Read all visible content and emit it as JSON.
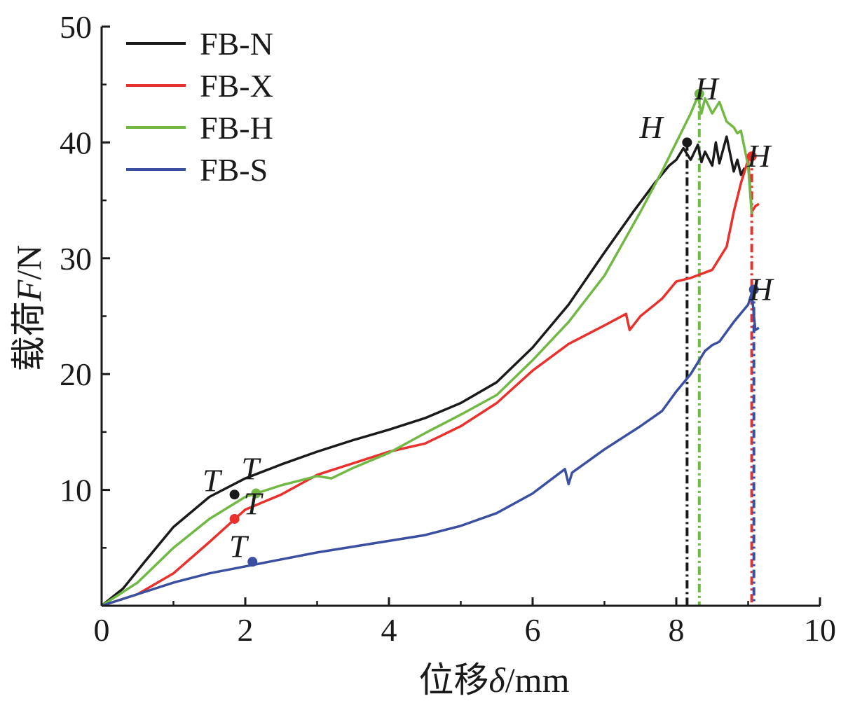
{
  "chart_data": {
    "type": "line",
    "xlabel_prefix": "位移",
    "xlabel_symbol": "δ",
    "xlabel_unit": "/mm",
    "ylabel_prefix": "载荷",
    "ylabel_symbol": "F",
    "ylabel_unit": "/N",
    "xlim": [
      0,
      10
    ],
    "ylim": [
      0,
      50
    ],
    "x_ticks": [
      0,
      2,
      4,
      6,
      8,
      10
    ],
    "y_ticks": [
      10,
      20,
      30,
      40,
      50
    ],
    "x_tick_labels": [
      "0",
      "2",
      "4",
      "6",
      "8",
      "10"
    ],
    "y_tick_labels": [
      "10",
      "20",
      "30",
      "40",
      "50"
    ],
    "grid": false,
    "legend_position": "top-left",
    "series": [
      {
        "name": "FB-N",
        "color": "#1a1a1a",
        "x": [
          0,
          0.3,
          0.6,
          1.0,
          1.5,
          2.0,
          2.5,
          3.0,
          3.5,
          4.0,
          4.5,
          5.0,
          5.5,
          6.0,
          6.5,
          7.0,
          7.4,
          7.7,
          7.9,
          8.0,
          8.1,
          8.2,
          8.3,
          8.35,
          8.4,
          8.5,
          8.55,
          8.6,
          8.7,
          8.8,
          8.85,
          8.9,
          8.95
        ],
        "y": [
          0,
          1.5,
          3.8,
          6.8,
          9.4,
          11.0,
          12.2,
          13.3,
          14.3,
          15.2,
          16.2,
          17.5,
          19.3,
          22.3,
          26.0,
          30.5,
          34.0,
          36.5,
          38.0,
          38.5,
          39.5,
          38.5,
          39.8,
          38.3,
          39.2,
          38.0,
          40.0,
          38.2,
          40.5,
          37.5,
          38.5,
          37.2,
          37.8
        ]
      },
      {
        "name": "FB-X",
        "color": "#e8302c",
        "x": [
          0,
          0.5,
          1.0,
          1.5,
          2.0,
          2.5,
          3.0,
          3.5,
          4.0,
          4.5,
          5.0,
          5.5,
          6.0,
          6.5,
          7.0,
          7.3,
          7.35,
          7.5,
          7.8,
          8.0,
          8.2,
          8.5,
          8.7,
          8.8,
          8.9,
          9.0,
          9.05,
          9.1,
          9.15
        ],
        "y": [
          0,
          1.0,
          2.8,
          5.5,
          8.3,
          9.6,
          11.3,
          12.3,
          13.3,
          14.0,
          15.5,
          17.5,
          20.3,
          22.6,
          24.2,
          25.2,
          23.8,
          25.0,
          26.5,
          28.0,
          28.3,
          29.0,
          31.0,
          34.0,
          36.5,
          38.5,
          34.0,
          34.5,
          34.7
        ]
      },
      {
        "name": "FB-H",
        "color": "#72b845",
        "x": [
          0,
          0.5,
          1.0,
          1.5,
          2.0,
          2.5,
          3.0,
          3.2,
          3.5,
          4.0,
          4.5,
          5.0,
          5.5,
          6.0,
          6.5,
          7.0,
          7.5,
          7.8,
          8.0,
          8.2,
          8.3,
          8.35,
          8.4,
          8.5,
          8.6,
          8.7,
          8.8,
          8.85,
          8.9,
          9.0,
          9.05
        ],
        "y": [
          0,
          2.0,
          5.0,
          7.5,
          9.4,
          10.4,
          11.2,
          11.0,
          11.9,
          13.2,
          14.9,
          16.5,
          18.2,
          21.2,
          24.5,
          28.5,
          34.0,
          37.5,
          40.0,
          42.5,
          44.0,
          42.5,
          43.8,
          42.5,
          43.5,
          41.8,
          41.3,
          40.8,
          41.0,
          38.0,
          33.8
        ]
      },
      {
        "name": "FB-S",
        "color": "#3b4fa1",
        "x": [
          0,
          0.5,
          1.0,
          1.5,
          2.0,
          2.5,
          3.0,
          3.5,
          4.0,
          4.5,
          5.0,
          5.5,
          6.0,
          6.45,
          6.5,
          6.55,
          7.0,
          7.5,
          7.8,
          8.0,
          8.2,
          8.4,
          8.5,
          8.6,
          8.8,
          9.0,
          9.05,
          9.1,
          9.15
        ],
        "y": [
          0,
          1.0,
          2.0,
          2.8,
          3.4,
          4.0,
          4.6,
          5.1,
          5.6,
          6.1,
          6.9,
          8.0,
          9.7,
          11.8,
          10.5,
          11.5,
          13.5,
          15.5,
          16.8,
          18.5,
          20.0,
          22.0,
          22.5,
          22.8,
          24.5,
          26.0,
          27.0,
          23.8,
          24.0
        ]
      }
    ],
    "markers": [
      {
        "series": "FB-N",
        "label": "T",
        "x": 1.85,
        "y": 9.6,
        "label_dx": -0.32,
        "label_dy": 0.3
      },
      {
        "series": "FB-H",
        "label": "T",
        "x": 2.15,
        "y": 9.7,
        "label_dx": -0.08,
        "label_dy": 1.2
      },
      {
        "series": "FB-X",
        "label": "T",
        "x": 1.85,
        "y": 7.5,
        "label_dx": 0.25,
        "label_dy": 0.4
      },
      {
        "series": "FB-S",
        "label": "T",
        "x": 2.1,
        "y": 3.8,
        "label_dx": -0.2,
        "label_dy": 0.4
      },
      {
        "series": "FB-N",
        "label": "H",
        "x": 8.15,
        "y": 40.0,
        "label_dx": -0.5,
        "label_dy": 0.4
      },
      {
        "series": "FB-H",
        "label": "H",
        "x": 8.32,
        "y": 44.2,
        "label_dx": 0.1,
        "label_dy": -0.5
      },
      {
        "series": "FB-X",
        "label": "H",
        "x": 9.05,
        "y": 38.8,
        "label_dx": 0.1,
        "label_dy": -0.9
      },
      {
        "series": "FB-S",
        "label": "H",
        "x": 9.08,
        "y": 27.3,
        "label_dx": 0.1,
        "label_dy": -0.9
      }
    ],
    "dropline_style": "dash-dot"
  }
}
